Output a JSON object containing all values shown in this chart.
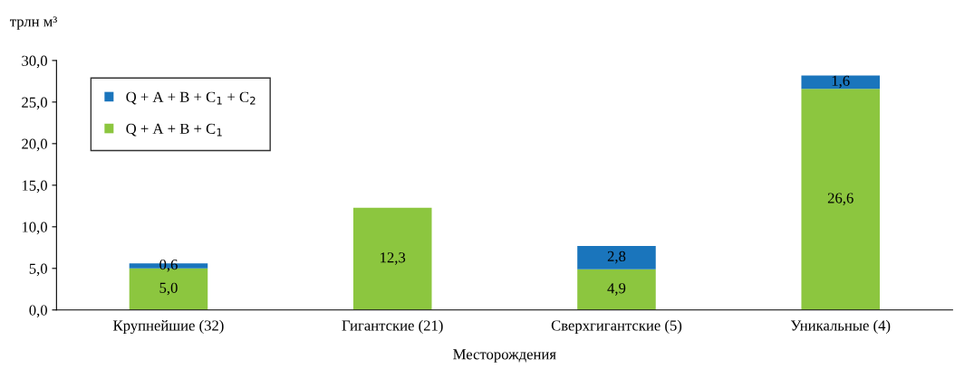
{
  "chart_data": {
    "type": "bar",
    "stacked": true,
    "ylabel": "трлн м³",
    "xlabel": "Месторождения",
    "categories": [
      "Крупнейшие (32)",
      "Гигантские (21)",
      "Сверхгигантские (5)",
      "Уникальные (4)"
    ],
    "series": [
      {
        "name": "Q + A + B + C$_{1}$",
        "color": "#8cc63f",
        "values": [
          5.0,
          12.3,
          4.9,
          26.6
        ],
        "value_labels": [
          "5,0",
          "12,3",
          "4,9",
          "26,6"
        ]
      },
      {
        "name": "Q + A + B + C$_{1}$ + C$_{2}$",
        "color": "#1a75bc",
        "values": [
          0.6,
          null,
          2.8,
          1.6
        ],
        "value_labels": [
          "0,6",
          null,
          "2,8",
          "1,6"
        ]
      }
    ],
    "ylim": [
      0,
      30
    ],
    "yticks": [
      {
        "value": 0,
        "label": "0,0"
      },
      {
        "value": 5,
        "label": "5,0"
      },
      {
        "value": 10,
        "label": "10,0"
      },
      {
        "value": 15,
        "label": "15,0"
      },
      {
        "value": 20,
        "label": "20,0"
      },
      {
        "value": 25,
        "label": "25,0"
      },
      {
        "value": 30,
        "label": "30,0"
      }
    ],
    "grid": false,
    "legend": "top left"
  }
}
